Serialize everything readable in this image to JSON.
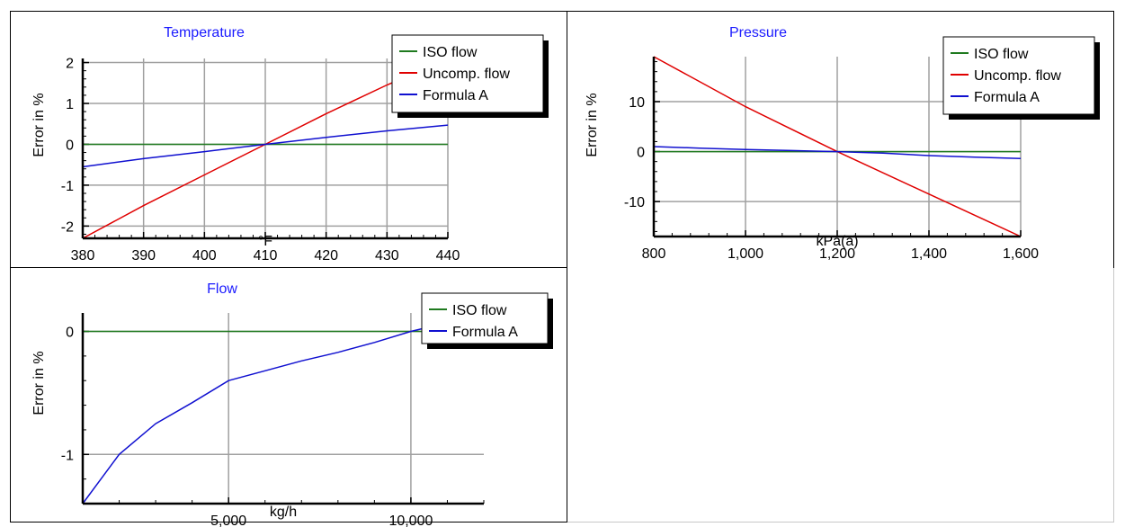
{
  "colors": {
    "iso": "#1f7a1f",
    "uncomp": "#e00000",
    "formula": "#1010d0",
    "title": "#1a1aff",
    "grid": "#a0a0a0"
  },
  "chart_data": [
    {
      "type": "line",
      "title": "Temperature",
      "xlabel": "°F",
      "ylabel": "Error in %",
      "xlim": [
        380,
        440
      ],
      "ylim": [
        -2.3,
        2.1
      ],
      "xticks": [
        "380",
        "390",
        "400",
        "410",
        "420",
        "430",
        "440"
      ],
      "yticks": [
        "2",
        "1",
        "0",
        "-1",
        "-2"
      ],
      "grid": true,
      "legend_position": "top-right",
      "series": [
        {
          "name": "ISO flow",
          "color_key": "iso",
          "x": [
            380,
            440
          ],
          "y": [
            0,
            0
          ]
        },
        {
          "name": "Uncomp. flow",
          "color_key": "uncomp",
          "x": [
            380,
            390,
            400,
            410,
            420,
            430,
            440
          ],
          "y": [
            -2.3,
            -1.5,
            -0.75,
            0.0,
            0.75,
            1.45,
            2.1
          ]
        },
        {
          "name": "Formula A",
          "color_key": "formula",
          "x": [
            380,
            390,
            400,
            410,
            420,
            430,
            440
          ],
          "y": [
            -0.55,
            -0.35,
            -0.18,
            0.0,
            0.17,
            0.33,
            0.47
          ]
        }
      ]
    },
    {
      "type": "line",
      "title": "Pressure",
      "xlabel": "kPa(a)",
      "ylabel": "Error in %",
      "xlim": [
        800,
        1600
      ],
      "ylim": [
        -17,
        19
      ],
      "xticks": [
        "800",
        "1,000",
        "1,200",
        "1,400",
        "1,600"
      ],
      "yticks": [
        "10",
        "0",
        "-10"
      ],
      "grid": true,
      "legend_position": "top-right",
      "series": [
        {
          "name": "ISO flow",
          "color_key": "iso",
          "x": [
            800,
            1600
          ],
          "y": [
            0,
            0
          ]
        },
        {
          "name": "Uncomp. flow",
          "color_key": "uncomp",
          "x": [
            800,
            1000,
            1200,
            1400,
            1600
          ],
          "y": [
            19,
            9,
            0,
            -8.5,
            -17
          ]
        },
        {
          "name": "Formula A",
          "color_key": "formula",
          "x": [
            800,
            900,
            1000,
            1100,
            1200,
            1300,
            1400,
            1500,
            1600
          ],
          "y": [
            1.0,
            0.7,
            0.4,
            0.2,
            0.0,
            -0.3,
            -0.8,
            -1.1,
            -1.4
          ]
        }
      ]
    },
    {
      "type": "line",
      "title": "Flow",
      "xlabel": "kg/h",
      "ylabel": "Error in %",
      "xlim": [
        1000,
        12000
      ],
      "ylim": [
        -1.4,
        0.15
      ],
      "xticks": [
        "5,000",
        "10,000"
      ],
      "yticks": [
        "0",
        "-1"
      ],
      "grid": true,
      "legend_position": "top-right",
      "series": [
        {
          "name": "ISO flow",
          "color_key": "iso",
          "x": [
            1000,
            12000
          ],
          "y": [
            0,
            0
          ]
        },
        {
          "name": "Formula A",
          "color_key": "formula",
          "x": [
            1000,
            1500,
            2000,
            3000,
            4000,
            5000,
            6000,
            7000,
            8000,
            9000,
            10000,
            11000,
            12000
          ],
          "y": [
            -1.4,
            -1.2,
            -1.0,
            -0.75,
            -0.58,
            -0.4,
            -0.32,
            -0.24,
            -0.17,
            -0.09,
            0.0,
            0.07,
            0.15
          ]
        }
      ]
    }
  ]
}
